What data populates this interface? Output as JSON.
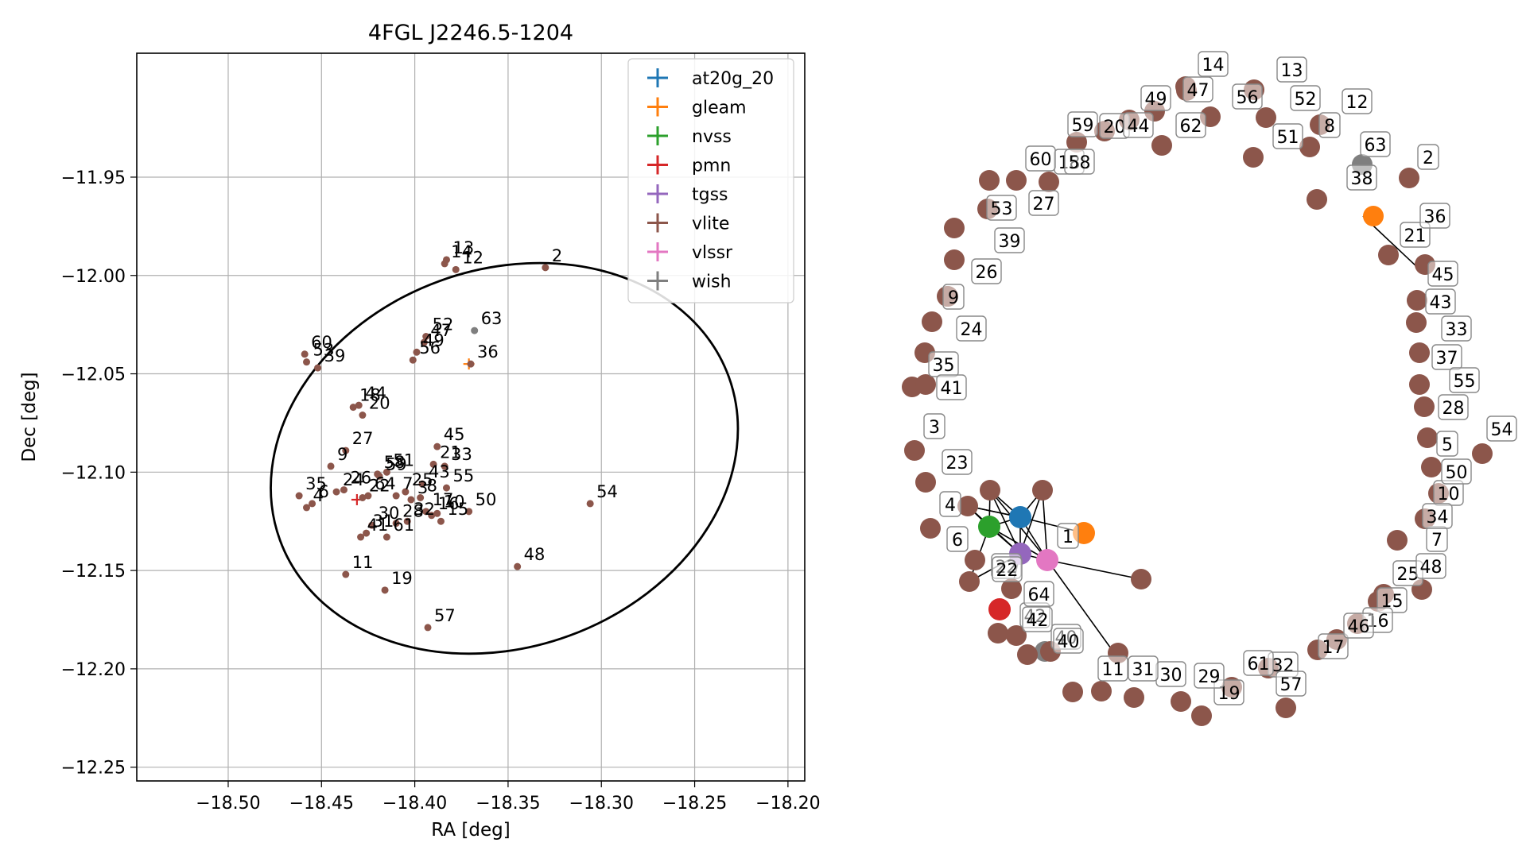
{
  "chart_data": [
    {
      "type": "scatter",
      "title": "4FGL J2246.5-1204",
      "xlabel": "RA [deg]",
      "ylabel": "Dec [deg]",
      "xlim": [
        -18.549,
        -18.191
      ],
      "ylim": [
        -12.257,
        -11.887
      ],
      "xticks": [
        "−18.50",
        "−18.45",
        "−18.40",
        "−18.35",
        "−18.30",
        "−18.25",
        "−18.20"
      ],
      "xtick_values": [
        -18.5,
        -18.45,
        -18.4,
        -18.35,
        -18.3,
        -18.25,
        -18.2
      ],
      "yticks": [
        "−11.95",
        "−12.00",
        "−12.05",
        "−12.10",
        "−12.15",
        "−12.20",
        "−12.25"
      ],
      "ytick_values": [
        -11.95,
        -12.0,
        -12.05,
        -12.1,
        -12.15,
        -12.2,
        -12.25
      ],
      "grid": true,
      "legend_position": "top-right",
      "ellipse": {
        "center": [
          -18.352,
          -12.093
        ],
        "semi_axis_ra": 0.128,
        "semi_axis_dec": 0.096,
        "angle_deg": -20
      },
      "series": [
        {
          "name": "at20g_20",
          "color": "#1f77b4",
          "points": []
        },
        {
          "name": "gleam",
          "color": "#ff7f0e",
          "points": [
            {
              "x": -18.371,
              "y": -12.045
            }
          ]
        },
        {
          "name": "nvss",
          "color": "#2ca02c",
          "points": []
        },
        {
          "name": "pmn",
          "color": "#d62728",
          "points": [
            {
              "x": -18.431,
              "y": -12.114
            }
          ]
        },
        {
          "name": "tgss",
          "color": "#9467bd",
          "points": []
        },
        {
          "name": "vlite",
          "color": "#8c564b",
          "points": [
            {
              "label": "2",
              "x": -18.33,
              "y": -11.996
            },
            {
              "label": "13",
              "x": -18.383,
              "y": -11.992
            },
            {
              "label": "14",
              "x": -18.384,
              "y": -11.994
            },
            {
              "label": "12",
              "x": -18.378,
              "y": -11.997
            },
            {
              "label": "52",
              "x": -18.394,
              "y": -12.031
            },
            {
              "label": "47",
              "x": -18.395,
              "y": -12.034
            },
            {
              "label": "49",
              "x": -18.399,
              "y": -12.039
            },
            {
              "label": "56",
              "x": -18.401,
              "y": -12.043
            },
            {
              "label": "36",
              "x": -18.37,
              "y": -12.045
            },
            {
              "label": "60",
              "x": -18.459,
              "y": -12.04
            },
            {
              "label": "53",
              "x": -18.458,
              "y": -12.044
            },
            {
              "label": "39",
              "x": -18.452,
              "y": -12.047
            },
            {
              "label": "18",
              "x": -18.433,
              "y": -12.067
            },
            {
              "label": "44",
              "x": -18.43,
              "y": -12.066
            },
            {
              "label": "20",
              "x": -18.428,
              "y": -12.071
            },
            {
              "label": "27",
              "x": -18.437,
              "y": -12.089
            },
            {
              "label": "45",
              "x": -18.388,
              "y": -12.087
            },
            {
              "label": "21",
              "x": -18.39,
              "y": -12.096
            },
            {
              "label": "33",
              "x": -18.384,
              "y": -12.097
            },
            {
              "label": "9",
              "x": -18.445,
              "y": -12.097
            },
            {
              "label": "58",
              "x": -18.42,
              "y": -12.101
            },
            {
              "label": "59",
              "x": -18.419,
              "y": -12.102
            },
            {
              "label": "51",
              "x": -18.415,
              "y": -12.1
            },
            {
              "label": "55",
              "x": -18.383,
              "y": -12.108
            },
            {
              "label": "43",
              "x": -18.396,
              "y": -12.106
            },
            {
              "label": "35",
              "x": -18.462,
              "y": -12.112
            },
            {
              "label": "4",
              "x": -18.458,
              "y": -12.118
            },
            {
              "label": "6",
              "x": -18.455,
              "y": -12.116
            },
            {
              "label": "24",
              "x": -18.442,
              "y": -12.11
            },
            {
              "label": "26",
              "x": -18.438,
              "y": -12.109
            },
            {
              "label": "22",
              "x": -18.428,
              "y": -12.113
            },
            {
              "label": "64",
              "x": -18.425,
              "y": -12.112
            },
            {
              "label": "7",
              "x": -18.41,
              "y": -12.112
            },
            {
              "label": "3",
              "x": -18.402,
              "y": -12.114
            },
            {
              "label": "25",
              "x": -18.405,
              "y": -12.11
            },
            {
              "label": "8",
              "x": -18.397,
              "y": -12.113
            },
            {
              "label": "17",
              "x": -18.394,
              "y": -12.12
            },
            {
              "label": "16",
              "x": -18.391,
              "y": -12.122
            },
            {
              "label": "10",
              "x": -18.388,
              "y": -12.121
            },
            {
              "label": "15",
              "x": -18.386,
              "y": -12.125
            },
            {
              "label": "50",
              "x": -18.371,
              "y": -12.12
            },
            {
              "label": "54",
              "x": -18.306,
              "y": -12.116
            },
            {
              "label": "30",
              "x": -18.423,
              "y": -12.127
            },
            {
              "label": "28",
              "x": -18.41,
              "y": -12.126
            },
            {
              "label": "32",
              "x": -18.404,
              "y": -12.125
            },
            {
              "label": "41",
              "x": -18.429,
              "y": -12.133
            },
            {
              "label": "31",
              "x": -18.426,
              "y": -12.131
            },
            {
              "label": "61",
              "x": -18.415,
              "y": -12.133
            },
            {
              "label": "48",
              "x": -18.345,
              "y": -12.148
            },
            {
              "label": "11",
              "x": -18.437,
              "y": -12.152
            },
            {
              "label": "19",
              "x": -18.416,
              "y": -12.16
            },
            {
              "label": "57",
              "x": -18.393,
              "y": -12.179
            }
          ]
        },
        {
          "name": "vlssr",
          "color": "#e377c2",
          "points": []
        },
        {
          "name": "wish",
          "color": "#7f7f7f",
          "points": [
            {
              "label": "63",
              "x": -18.368,
              "y": -12.028
            }
          ]
        }
      ]
    },
    {
      "type": "network",
      "node_labels": [
        "1",
        "2",
        "3",
        "4",
        "5",
        "6",
        "7",
        "8",
        "9",
        "10",
        "11",
        "12",
        "13",
        "14",
        "15",
        "16",
        "17",
        "18",
        "19",
        "20",
        "21",
        "22",
        "23",
        "24",
        "25",
        "26",
        "27",
        "28",
        "29",
        "30",
        "31",
        "32",
        "33",
        "34",
        "35",
        "36",
        "37",
        "38",
        "39",
        "40",
        "41",
        "42",
        "43",
        "44",
        "45",
        "46",
        "47",
        "48",
        "49",
        "50",
        "51",
        "52",
        "53",
        "54",
        "55",
        "56",
        "57",
        "58",
        "59",
        "60",
        "61",
        "62",
        "63",
        "64"
      ],
      "cluster_colors": [
        "#1f77b4",
        "#ff7f0e",
        "#2ca02c",
        "#d62728",
        "#9467bd",
        "#e377c2",
        "#7f7f7f"
      ],
      "vlite_color": "#8c564b",
      "ring_colors": {
        "gleam": "#ff7f0e",
        "wish": "#7f7f7f"
      }
    }
  ]
}
